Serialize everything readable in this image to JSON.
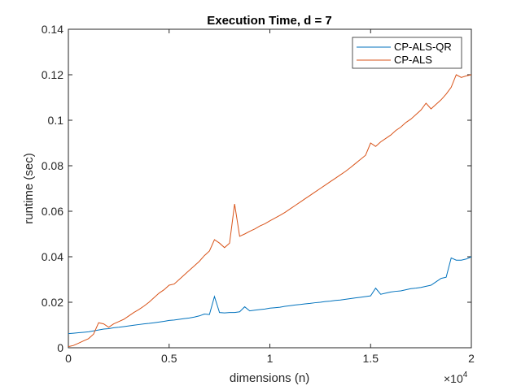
{
  "chart_data": {
    "type": "line",
    "title": "Execution Time, d = 7",
    "xlabel": "dimensions (n)",
    "ylabel": "runtime (sec)",
    "xlim": [
      0,
      20000
    ],
    "ylim": [
      0,
      0.14
    ],
    "x_ticks": [
      0,
      5000,
      10000,
      15000,
      20000
    ],
    "x_tick_labels": [
      "0",
      "0.5",
      "1",
      "1.5",
      "2"
    ],
    "x_exponent_label": "×10",
    "x_exponent_power": "4",
    "y_ticks": [
      0,
      0.02,
      0.04,
      0.06,
      0.08,
      0.1,
      0.12,
      0.14
    ],
    "y_tick_labels": [
      "0",
      "0.02",
      "0.04",
      "0.06",
      "0.08",
      "0.1",
      "0.12",
      "0.14"
    ],
    "grid": false,
    "legend_position": "top-right",
    "x": [
      0,
      250,
      500,
      750,
      1000,
      1250,
      1500,
      1750,
      2000,
      2250,
      2500,
      2750,
      3000,
      3250,
      3500,
      3750,
      4000,
      4250,
      4500,
      4750,
      5000,
      5250,
      5500,
      5750,
      6000,
      6250,
      6500,
      6750,
      7000,
      7250,
      7500,
      7750,
      8000,
      8250,
      8500,
      8750,
      9000,
      9250,
      9500,
      9750,
      10000,
      10250,
      10500,
      10750,
      11000,
      11250,
      11500,
      11750,
      12000,
      12250,
      12500,
      12750,
      13000,
      13250,
      13500,
      13750,
      14000,
      14250,
      14500,
      14750,
      15000,
      15250,
      15500,
      15750,
      16000,
      16250,
      16500,
      16750,
      17000,
      17250,
      17500,
      17750,
      18000,
      18250,
      18500,
      18750,
      19000,
      19250,
      19500,
      19750,
      20000
    ],
    "series": [
      {
        "name": "CP-ALS-QR",
        "color": "#0072BD",
        "values": [
          0.0062,
          0.0064,
          0.0066,
          0.0068,
          0.007,
          0.0074,
          0.0078,
          0.0082,
          0.0084,
          0.0088,
          0.009,
          0.0093,
          0.0096,
          0.0099,
          0.0102,
          0.0105,
          0.0107,
          0.011,
          0.0113,
          0.0116,
          0.012,
          0.0122,
          0.0125,
          0.0128,
          0.0131,
          0.0135,
          0.014,
          0.0148,
          0.0146,
          0.0225,
          0.0155,
          0.0153,
          0.0155,
          0.0155,
          0.0158,
          0.018,
          0.0162,
          0.0165,
          0.0168,
          0.017,
          0.0174,
          0.0176,
          0.0178,
          0.0182,
          0.0185,
          0.0188,
          0.019,
          0.0193,
          0.0195,
          0.0198,
          0.02,
          0.0203,
          0.0205,
          0.0208,
          0.021,
          0.0213,
          0.0216,
          0.0219,
          0.0222,
          0.0225,
          0.0228,
          0.0262,
          0.0235,
          0.024,
          0.0245,
          0.0248,
          0.025,
          0.0255,
          0.026,
          0.0262,
          0.0265,
          0.027,
          0.0275,
          0.029,
          0.0305,
          0.031,
          0.0395,
          0.0385,
          0.0385,
          0.039,
          0.04
        ]
      },
      {
        "name": "CP-ALS",
        "color": "#D95319",
        "values": [
          0.0005,
          0.001,
          0.002,
          0.003,
          0.004,
          0.006,
          0.011,
          0.0105,
          0.009,
          0.0105,
          0.0115,
          0.0125,
          0.014,
          0.0155,
          0.0168,
          0.0183,
          0.02,
          0.022,
          0.024,
          0.0255,
          0.0275,
          0.028,
          0.03,
          0.032,
          0.034,
          0.036,
          0.038,
          0.0405,
          0.0425,
          0.0475,
          0.046,
          0.044,
          0.046,
          0.0632,
          0.049,
          0.05,
          0.0512,
          0.0522,
          0.0535,
          0.0545,
          0.0558,
          0.057,
          0.0582,
          0.0595,
          0.061,
          0.0625,
          0.064,
          0.0655,
          0.067,
          0.0685,
          0.07,
          0.0715,
          0.073,
          0.0745,
          0.076,
          0.0775,
          0.0792,
          0.081,
          0.0828,
          0.0846,
          0.09,
          0.0885,
          0.0905,
          0.092,
          0.0935,
          0.0955,
          0.097,
          0.099,
          0.1005,
          0.1025,
          0.1045,
          0.1075,
          0.105,
          0.107,
          0.109,
          0.1115,
          0.1145,
          0.12,
          0.1188,
          0.1195,
          0.12
        ]
      }
    ]
  }
}
